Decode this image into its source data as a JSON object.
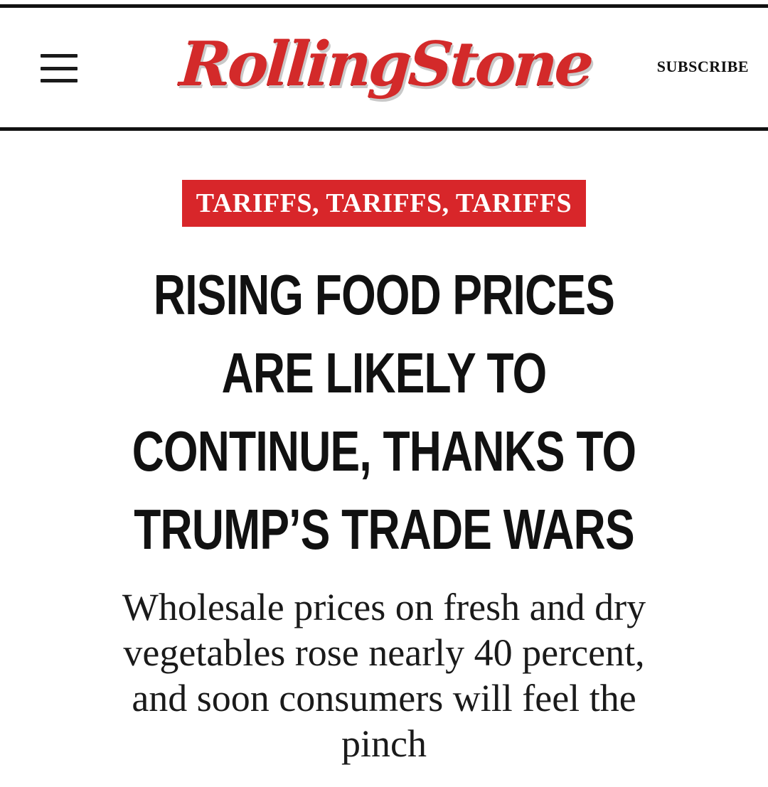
{
  "header": {
    "menu_icon": "hamburger-menu-icon",
    "logo_text": "RollingStone",
    "subscribe_label": "SUBSCRIBE"
  },
  "article": {
    "kicker": "TARIFFS, TARIFFS, TARIFFS",
    "headline_lines": [
      "RISING FOOD PRICES",
      "ARE LIKELY TO",
      "CONTINUE, THANKS TO",
      "TRUMP’S TRADE WARS"
    ],
    "dek_lines": [
      "Wholesale prices on fresh and dry",
      "vegetables rose nearly 40 percent,",
      "and soon consumers will feel the",
      "pinch"
    ]
  },
  "colors": {
    "brand_red": "#d8262a",
    "text": "#111111",
    "background": "#ffffff"
  }
}
